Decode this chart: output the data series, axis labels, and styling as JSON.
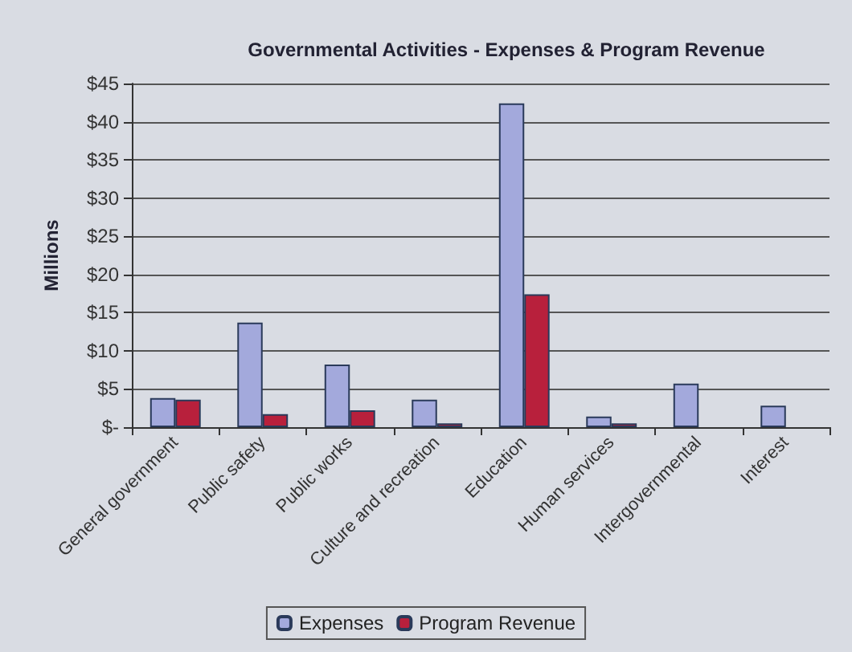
{
  "chart_data": {
    "type": "bar",
    "title": "Governmental Activities - Expenses & Program Revenue",
    "ylabel": "Millions",
    "categories": [
      "General government",
      "Public safety",
      "Public works",
      "Culture and recreation",
      "Education",
      "Human services",
      "Intergovernmental",
      "Interest"
    ],
    "series": [
      {
        "name": "Expenses",
        "color": "#a3a9dc",
        "values": [
          3.8,
          13.7,
          8.2,
          3.6,
          42.4,
          1.4,
          5.7,
          2.8
        ]
      },
      {
        "name": "Program Revenue",
        "color": "#b8203c",
        "values": [
          3.6,
          1.7,
          2.2,
          0.5,
          17.4,
          0.5,
          null,
          null
        ]
      }
    ],
    "ylim": [
      0,
      45
    ],
    "yticks": [
      {
        "value": 0,
        "label": "$-"
      },
      {
        "value": 5,
        "label": "$5"
      },
      {
        "value": 10,
        "label": "$10"
      },
      {
        "value": 15,
        "label": "$15"
      },
      {
        "value": 20,
        "label": "$20"
      },
      {
        "value": 25,
        "label": "$25"
      },
      {
        "value": 30,
        "label": "$30"
      },
      {
        "value": 35,
        "label": "$35"
      },
      {
        "value": 40,
        "label": "$40"
      },
      {
        "value": 45,
        "label": "$45"
      }
    ],
    "grid": "y",
    "legend": "bottom"
  }
}
